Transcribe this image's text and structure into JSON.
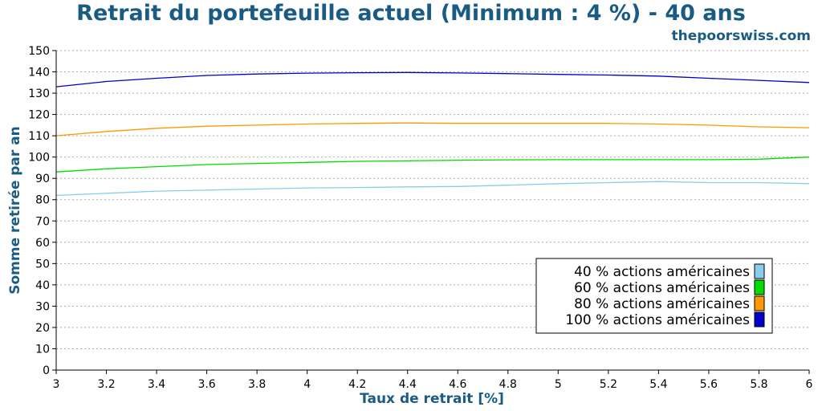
{
  "chart_data": {
    "type": "line",
    "title": "Retrait du portefeuille actuel (Minimum : 4 %) - 40 ans",
    "subtitle": "thepoorswiss.com",
    "xlabel": "Taux de retrait [%]",
    "ylabel": "Somme retirée par an",
    "xlim": [
      3,
      6
    ],
    "ylim": [
      0,
      150
    ],
    "x_ticks": [
      "3",
      "3.2",
      "3.4",
      "3.6",
      "3.8",
      "4",
      "4.2",
      "4.4",
      "4.6",
      "4.8",
      "5",
      "5.2",
      "5.4",
      "5.6",
      "5.8",
      "6"
    ],
    "y_ticks": [
      "0",
      "10",
      "20",
      "30",
      "40",
      "50",
      "60",
      "70",
      "80",
      "90",
      "100",
      "110",
      "120",
      "130",
      "140",
      "150"
    ],
    "grid": "horizontal-dotted",
    "legend_position": "bottom-right",
    "x": [
      3.0,
      3.2,
      3.4,
      3.6,
      3.8,
      4.0,
      4.2,
      4.4,
      4.6,
      4.8,
      5.0,
      5.2,
      5.4,
      5.6,
      5.8,
      6.0
    ],
    "series": [
      {
        "name": "40 % actions américaines",
        "color": "#87ceeb",
        "values": [
          82,
          83,
          84,
          84.5,
          85,
          85.5,
          85.7,
          86,
          86.2,
          86.8,
          87.5,
          88,
          88.5,
          88,
          88,
          87.5
        ]
      },
      {
        "name": "60 % actions américaines",
        "color": "#00dd00",
        "values": [
          93,
          94.5,
          95.5,
          96.5,
          97,
          97.5,
          98,
          98.2,
          98.5,
          98.7,
          98.8,
          98.8,
          98.8,
          98.8,
          99,
          100
        ]
      },
      {
        "name": "80 % actions américaines",
        "color": "#ff9900",
        "values": [
          110,
          112,
          113.5,
          114.5,
          115,
          115.5,
          115.8,
          116,
          115.8,
          115.8,
          115.8,
          115.8,
          115.5,
          115,
          114.2,
          113.8
        ]
      },
      {
        "name": "100 % actions américaines",
        "color": "#0000cc",
        "values": [
          133,
          135.5,
          137,
          138.3,
          139,
          139.4,
          139.6,
          139.7,
          139.5,
          139.2,
          138.8,
          138.5,
          138,
          137,
          136,
          135
        ]
      }
    ]
  }
}
